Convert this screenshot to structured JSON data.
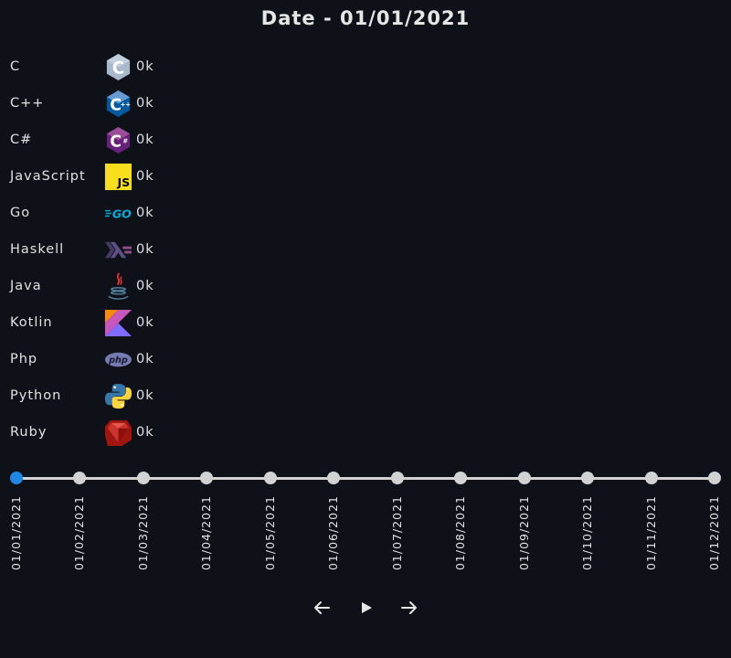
{
  "header": {
    "title": "Date - 01/01/2021"
  },
  "languages": [
    {
      "name": "C",
      "value": "0k",
      "icon": "c-language-icon"
    },
    {
      "name": "C++",
      "value": "0k",
      "icon": "cpp-language-icon"
    },
    {
      "name": "C#",
      "value": "0k",
      "icon": "csharp-language-icon"
    },
    {
      "name": "JavaScript",
      "value": "0k",
      "icon": "javascript-icon"
    },
    {
      "name": "Go",
      "value": "0k",
      "icon": "go-icon"
    },
    {
      "name": "Haskell",
      "value": "0k",
      "icon": "haskell-icon"
    },
    {
      "name": "Java",
      "value": "0k",
      "icon": "java-icon"
    },
    {
      "name": "Kotlin",
      "value": "0k",
      "icon": "kotlin-icon"
    },
    {
      "name": "Php",
      "value": "0k",
      "icon": "php-icon"
    },
    {
      "name": "Python",
      "value": "0k",
      "icon": "python-icon"
    },
    {
      "name": "Ruby",
      "value": "0k",
      "icon": "ruby-icon"
    }
  ],
  "timeline": {
    "dates": [
      "01/01/2021",
      "01/02/2021",
      "01/03/2021",
      "01/04/2021",
      "01/05/2021",
      "01/06/2021",
      "01/07/2021",
      "01/08/2021",
      "01/09/2021",
      "01/10/2021",
      "01/11/2021",
      "01/12/2021"
    ],
    "selected_index": 0,
    "active_color": "#1e88e5",
    "inactive_color": "#d2d2d2"
  },
  "controls": {
    "previous": "arrow-left-icon",
    "play": "play-icon",
    "next": "arrow-right-icon"
  }
}
